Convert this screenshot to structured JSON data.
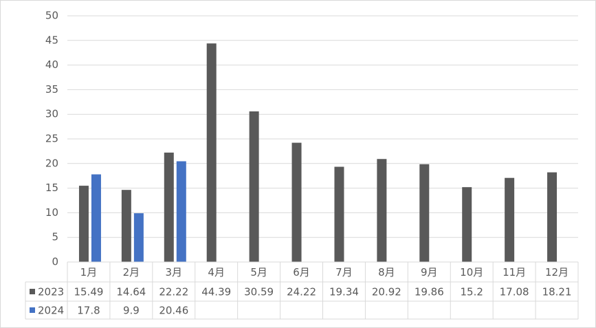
{
  "chart_data": {
    "type": "bar",
    "categories": [
      "1月",
      "2月",
      "3月",
      "4月",
      "5月",
      "6月",
      "7月",
      "8月",
      "9月",
      "10月",
      "11月",
      "12月"
    ],
    "series": [
      {
        "name": "2023",
        "color": "#595959",
        "values": [
          15.49,
          14.64,
          22.22,
          44.39,
          30.59,
          24.22,
          19.34,
          20.92,
          19.86,
          15.2,
          17.08,
          18.21
        ]
      },
      {
        "name": "2024",
        "color": "#4472c4",
        "values": [
          17.8,
          9.9,
          20.46,
          null,
          null,
          null,
          null,
          null,
          null,
          null,
          null,
          null
        ]
      }
    ],
    "ylim": [
      0,
      50
    ],
    "yticks": [
      0,
      5,
      10,
      15,
      20,
      25,
      30,
      35,
      40,
      45,
      50
    ],
    "grid": true,
    "data_table": true
  }
}
